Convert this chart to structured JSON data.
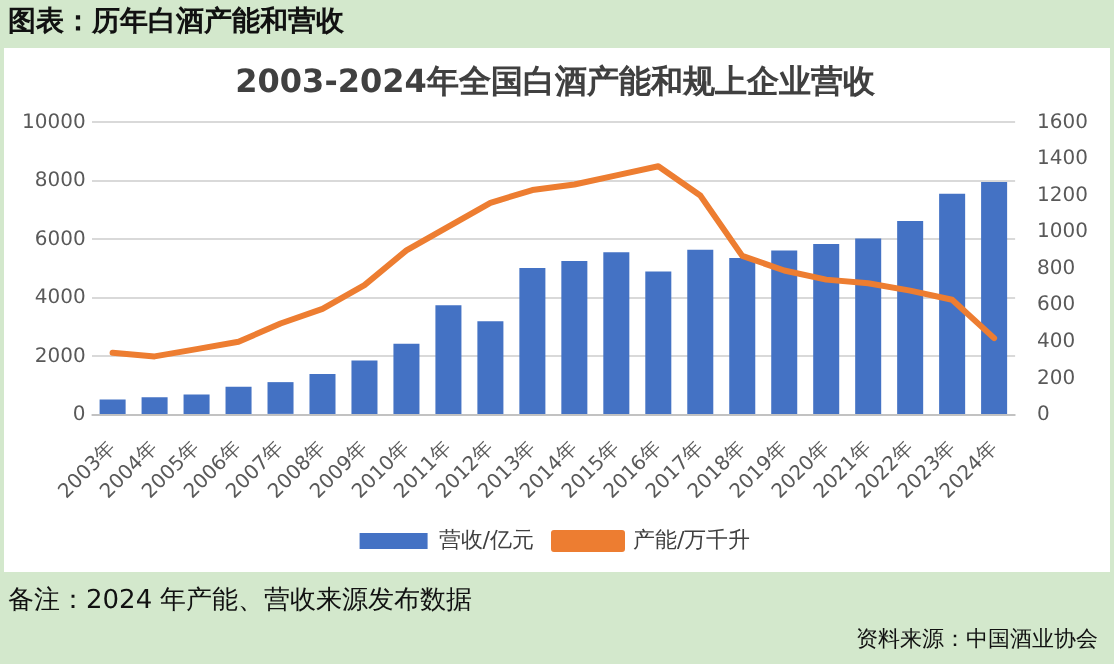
{
  "chart_data": {
    "type": "bar",
    "title": "2003-2024年全国白酒产能和规上企业营收",
    "categories": [
      "2003年",
      "2004年",
      "2005年",
      "2006年",
      "2007年",
      "2008年",
      "2009年",
      "2010年",
      "2011年",
      "2012年",
      "2013年",
      "2014年",
      "2015年",
      "2016年",
      "2017年",
      "2018年",
      "2019年",
      "2020年",
      "2021年",
      "2022年",
      "2023年",
      "2024年"
    ],
    "series": [
      {
        "name": "营收/亿元",
        "color": "#4472c4",
        "values": [
          530,
          600,
          700,
          960,
          1120,
          1400,
          1860,
          2430,
          3750,
          3200,
          5020,
          5260,
          5560,
          4900,
          5650,
          5360,
          5620,
          5840,
          6030,
          6630,
          7560,
          7960
        ]
      },
      {
        "name": "产能/万千升",
        "type": "line",
        "axis": "y2",
        "color": "#ed7d31",
        "values": [
          340,
          320,
          360,
          400,
          500,
          580,
          710,
          900,
          1030,
          1160,
          1230,
          1260,
          1310,
          1360,
          1200,
          870,
          790,
          740,
          720,
          680,
          630,
          420
        ]
      }
    ],
    "ylim": [
      0,
      10000
    ],
    "yticks": [
      0,
      2000,
      4000,
      6000,
      8000,
      10000
    ],
    "y2lim": [
      0,
      1600
    ],
    "y2ticks": [
      0,
      200,
      400,
      600,
      800,
      1000,
      1200,
      1400,
      1600
    ],
    "grid": "y",
    "legend": "bottom",
    "marker": "none",
    "line_style": "solid",
    "annotations": [
      "图表：历年白酒产能和营收",
      "备注：2024 年产能、营收来源发布数据",
      "资料来源：中国酒业协会"
    ]
  }
}
